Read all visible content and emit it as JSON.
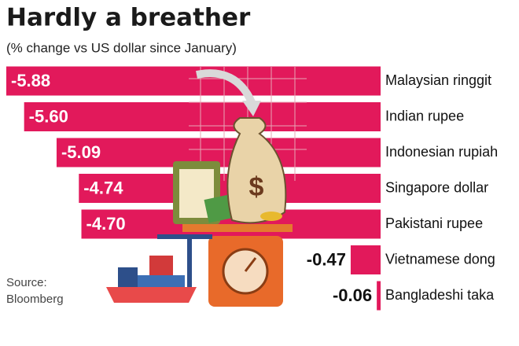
{
  "chart_data": {
    "type": "bar",
    "orientation": "horizontal",
    "title": "Hardly a breather",
    "subtitle": "(% change vs US dollar since January)",
    "source": [
      "Source:",
      "Bloomberg"
    ],
    "categories": [
      "Malaysian ringgit",
      "Indian rupee",
      "Indonesian rupiah",
      "Singapore dollar",
      "Pakistani rupee",
      "Vietnamese dong",
      "Bangladeshi taka"
    ],
    "values": [
      -5.88,
      -5.6,
      -5.09,
      -4.74,
      -4.7,
      -0.47,
      -0.06
    ],
    "value_labels": [
      "-5.88",
      "-5.60",
      "-5.09",
      "-4.74",
      "-4.70",
      "-0.47",
      "-0.06"
    ],
    "color": "#e2195b"
  }
}
